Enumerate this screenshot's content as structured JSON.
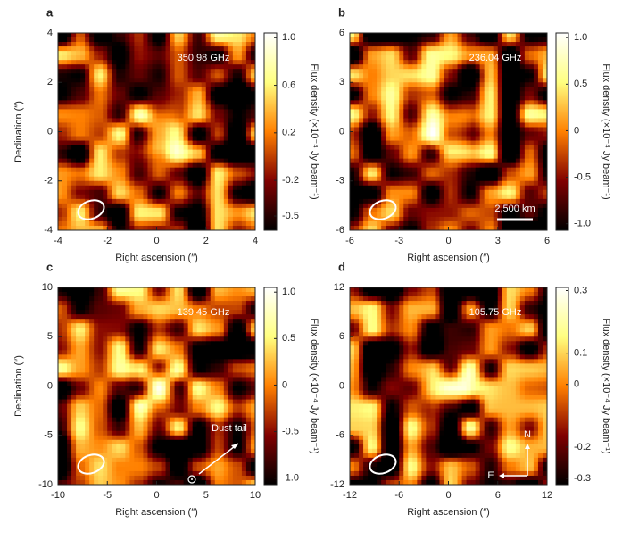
{
  "chart_data": [
    {
      "type": "heatmap",
      "panel": "a",
      "annotation": "350.98 GHz",
      "xlabel": "Right ascension (″)",
      "ylabel": "Declination (″)",
      "xlim": [
        -4,
        4
      ],
      "ylim": [
        -4,
        4
      ],
      "xticks": [
        -4,
        -2,
        0,
        2,
        4
      ],
      "yticks": [
        -4,
        -2,
        0,
        2,
        4
      ],
      "colorbar_label": "Flux density (×10⁻⁴ Jy beam⁻¹)",
      "clim": [
        -0.62,
        1.04
      ],
      "cticks": [
        {
          "value": 1,
          "label": "1.0"
        },
        0.6,
        0.2,
        -0.2,
        -0.5
      ]
    },
    {
      "type": "heatmap",
      "panel": "b",
      "annotation": "236.04 GHz",
      "xlabel": "Right ascension (″)",
      "xlim": [
        -6,
        6
      ],
      "ylim": [
        -6,
        6
      ],
      "xticks": [
        -6,
        -3,
        0,
        3,
        6
      ],
      "yticks": [
        -6,
        -3,
        0,
        3,
        6
      ],
      "colorbar_label": "Flux density (×10⁻⁴ Jy beam⁻¹)",
      "clim": [
        -1.07,
        1.05
      ],
      "cticks": [
        {
          "value": 1,
          "label": "1.0"
        },
        0.5,
        0,
        -0.5,
        {
          "value": -1,
          "label": "-1.0"
        }
      ],
      "scale_bar": "2,500 km"
    },
    {
      "type": "heatmap",
      "panel": "c",
      "annotation": "139.45 GHz",
      "xlabel": "Right ascension (″)",
      "ylabel": "Declination (″)",
      "xlim": [
        -10,
        10
      ],
      "ylim": [
        -10,
        10
      ],
      "xticks": [
        -10,
        -5,
        0,
        5,
        10
      ],
      "yticks": [
        -10,
        -5,
        0,
        5,
        10
      ],
      "colorbar_label": "Flux density (×10⁻⁴ Jy beam⁻¹)",
      "clim": [
        -1.07,
        1.05
      ],
      "cticks": [
        {
          "value": 1,
          "label": "1.0"
        },
        0.5,
        0,
        -0.5,
        {
          "value": -1,
          "label": "-1.0"
        }
      ],
      "arrow_label": "Dust tail"
    },
    {
      "type": "heatmap",
      "panel": "d",
      "annotation": "105.75 GHz",
      "xlabel": "Right ascension (″)",
      "xlim": [
        -12,
        12
      ],
      "ylim": [
        -12,
        12
      ],
      "xticks": [
        -12,
        -6,
        0,
        6,
        12
      ],
      "yticks": [
        -12,
        -6,
        0,
        6,
        12
      ],
      "colorbar_label": "Flux density (×10⁻⁴ Jy beam⁻¹)",
      "clim": [
        -0.32,
        0.31
      ],
      "cticks": [
        0.3,
        0.1,
        0,
        -0.2,
        -0.3
      ],
      "compass_north": "N",
      "compass_east": "E"
    }
  ]
}
